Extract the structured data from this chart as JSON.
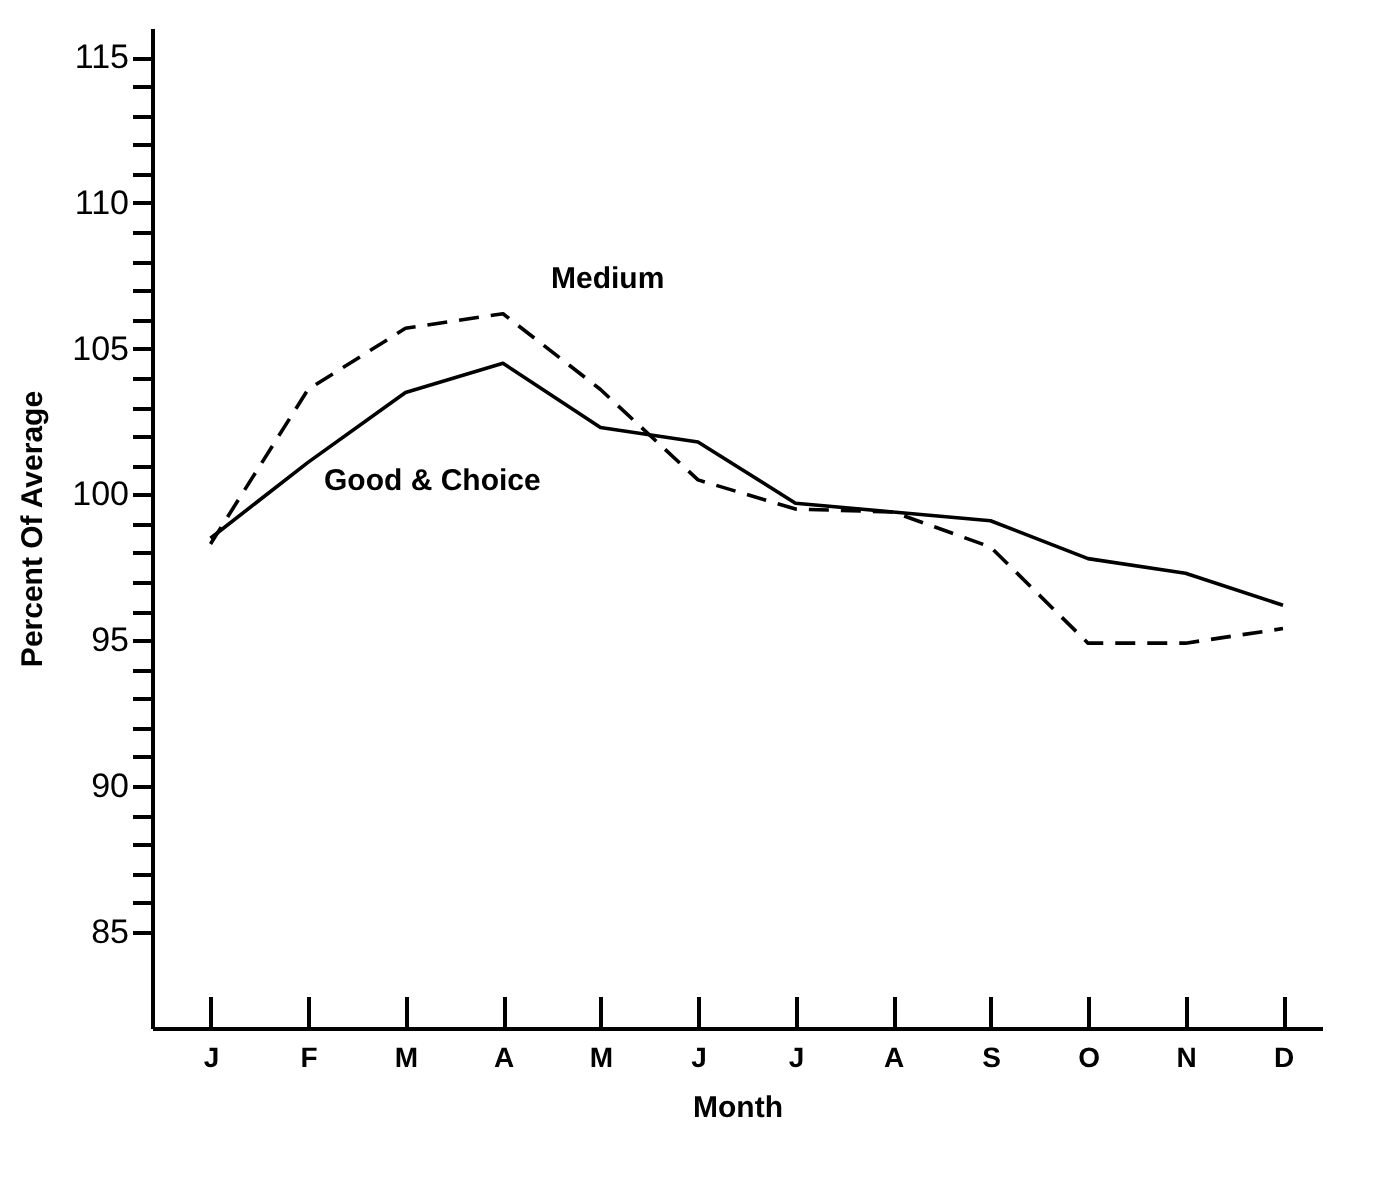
{
  "chart_data": {
    "type": "line",
    "xlabel": "Month",
    "ylabel": "Percent Of Average",
    "categories": [
      "J",
      "F",
      "M",
      "A",
      "M",
      "J",
      "J",
      "A",
      "S",
      "O",
      "N",
      "D"
    ],
    "series": [
      {
        "name": "Good & Choice",
        "color": "#000000",
        "line_style": "solid",
        "values": [
          98.5,
          101.1,
          103.5,
          104.5,
          102.3,
          101.8,
          99.7,
          99.4,
          99.1,
          97.8,
          97.3,
          96.2
        ]
      },
      {
        "name": "Medium",
        "color": "#000000",
        "line_style": "dashed",
        "values": [
          98.3,
          103.6,
          105.7,
          106.2,
          103.6,
          100.5,
          99.5,
          99.4,
          98.2,
          94.9,
          94.9,
          95.4
        ]
      }
    ],
    "ylim": [
      81.7,
      116
    ],
    "yticks": [
      85,
      {
        "value": 86,
        "label": null
      },
      {
        "value": 87,
        "label": null
      },
      {
        "value": 88,
        "label": null
      },
      {
        "value": 89,
        "label": null
      },
      90,
      {
        "value": 91,
        "label": null
      },
      {
        "value": 92,
        "label": null
      },
      {
        "value": 93,
        "label": null
      },
      {
        "value": 94,
        "label": null
      },
      95,
      {
        "value": 96,
        "label": null
      },
      {
        "value": 97,
        "label": null
      },
      {
        "value": 98,
        "label": null
      },
      {
        "value": 99,
        "label": null
      },
      100,
      {
        "value": 101,
        "label": null
      },
      {
        "value": 102,
        "label": null
      },
      {
        "value": 103,
        "label": null
      },
      {
        "value": 104,
        "label": null
      },
      105,
      {
        "value": 106,
        "label": null
      },
      {
        "value": 107,
        "label": null
      },
      {
        "value": 108,
        "label": null
      },
      {
        "value": 109,
        "label": null
      },
      110,
      {
        "value": 111,
        "label": null
      },
      {
        "value": 112,
        "label": null
      },
      {
        "value": 113,
        "label": null
      },
      {
        "value": 114,
        "label": null
      },
      115
    ],
    "grid": false,
    "legend": false,
    "marker": "none"
  }
}
